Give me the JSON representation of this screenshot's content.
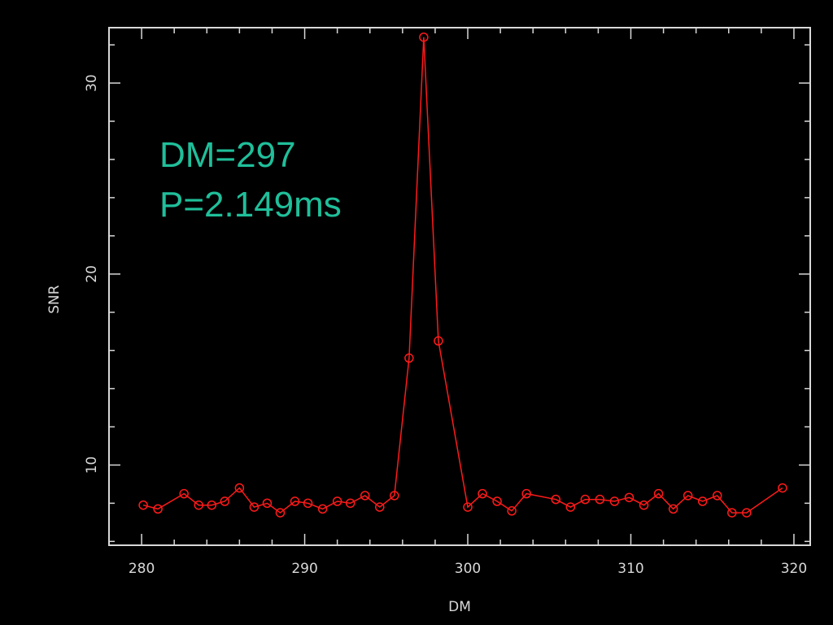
{
  "colors": {
    "background": "#000000",
    "frame": "#d8d8d8",
    "series": "#ff1a1a",
    "annotation": "#1fbf9a"
  },
  "chart_data": {
    "type": "line",
    "title": "",
    "xlabel": "DM",
    "ylabel": "SNR",
    "xlim": [
      278,
      321
    ],
    "ylim": [
      5.8,
      32.9
    ],
    "x_ticks": [
      280,
      290,
      300,
      310,
      320
    ],
    "y_ticks": [
      10,
      20,
      30
    ],
    "grid": false,
    "marker": "circle",
    "annotations": [
      "DM=297",
      "P=2.149ms"
    ],
    "series": [
      {
        "x": [
          280.1,
          281.0,
          282.6,
          283.5,
          284.3,
          285.1,
          286.0,
          286.9,
          287.7,
          288.5,
          289.4,
          290.2,
          291.1,
          292.0,
          292.8,
          293.7,
          294.6,
          295.5,
          296.4,
          297.3,
          298.2,
          300.0,
          300.9,
          301.8,
          302.7,
          303.6,
          305.4,
          306.3,
          307.2,
          308.1,
          309.0,
          309.9,
          310.8,
          311.7,
          312.6,
          313.5,
          314.4,
          315.3,
          316.2,
          317.1,
          319.3
        ],
        "y": [
          7.9,
          7.7,
          8.5,
          7.9,
          7.9,
          8.1,
          8.8,
          7.8,
          8.0,
          7.5,
          8.1,
          8.0,
          7.7,
          8.1,
          8.0,
          8.4,
          7.8,
          8.4,
          15.6,
          32.4,
          16.5,
          7.8,
          8.5,
          8.1,
          7.6,
          8.5,
          8.2,
          7.8,
          8.2,
          8.2,
          8.1,
          8.3,
          7.9,
          8.5,
          7.7,
          8.4,
          8.1,
          8.4,
          7.5,
          7.5,
          8.8
        ]
      }
    ]
  }
}
